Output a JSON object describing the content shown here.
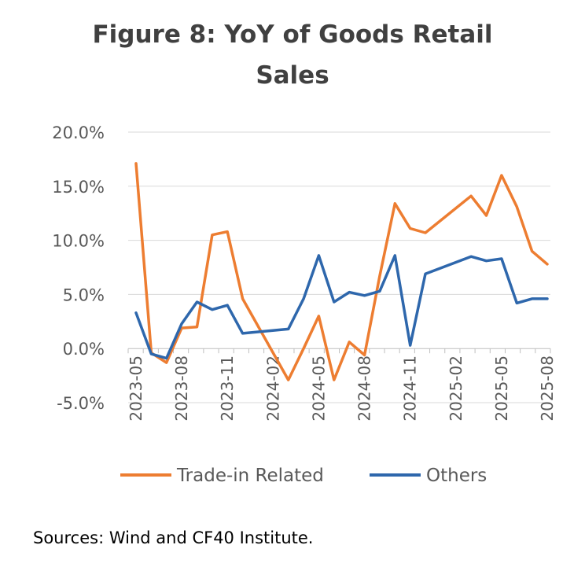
{
  "chart_data": {
    "type": "line",
    "title_lines": [
      "Figure 8: YoY of Goods Retail",
      "Sales"
    ],
    "y_ticks": [
      "20.0%",
      "15.0%",
      "10.0%",
      "5.0%",
      "0.0%",
      "-5.0%"
    ],
    "ylim": [
      -5,
      20
    ],
    "x_tick_labels": [
      "2023-05",
      "2023-08",
      "2023-11",
      "2024-02",
      "2024-05",
      "2024-08",
      "2024-11",
      "2025-02",
      "2025-05",
      "2025-08"
    ],
    "x": [
      "2023-05",
      "2023-06",
      "2023-07",
      "2023-08",
      "2023-09",
      "2023-10",
      "2023-11",
      "2023-12",
      "2024-01",
      "2024-02",
      "2024-03",
      "2024-04",
      "2024-05",
      "2024-06",
      "2024-07",
      "2024-08",
      "2024-09",
      "2024-10",
      "2024-11",
      "2024-12",
      "2025-01",
      "2025-02",
      "2025-03",
      "2025-04",
      "2025-05",
      "2025-06",
      "2025-07",
      "2025-08"
    ],
    "series": [
      {
        "name": "Trade-in Related",
        "color": "#ED7D31",
        "values": [
          17.1,
          -0.4,
          -1.3,
          1.9,
          2.0,
          10.5,
          10.8,
          4.6,
          null,
          null,
          -2.9,
          0.0,
          3.0,
          -2.9,
          0.6,
          -0.6,
          6.7,
          13.4,
          11.1,
          10.7,
          null,
          null,
          14.1,
          12.3,
          16.0,
          13.1,
          9.0,
          7.8
        ]
      },
      {
        "name": "Others",
        "color": "#2E67AC",
        "values": [
          3.3,
          -0.5,
          -0.9,
          2.3,
          4.3,
          3.6,
          4.0,
          1.4,
          null,
          null,
          1.8,
          4.6,
          8.6,
          4.3,
          5.2,
          4.9,
          5.3,
          8.6,
          0.3,
          6.9,
          null,
          null,
          8.5,
          8.1,
          8.3,
          4.2,
          4.6,
          4.6
        ]
      }
    ],
    "legend_position": "bottom"
  },
  "sources": "Sources: Wind and CF40 Institute."
}
